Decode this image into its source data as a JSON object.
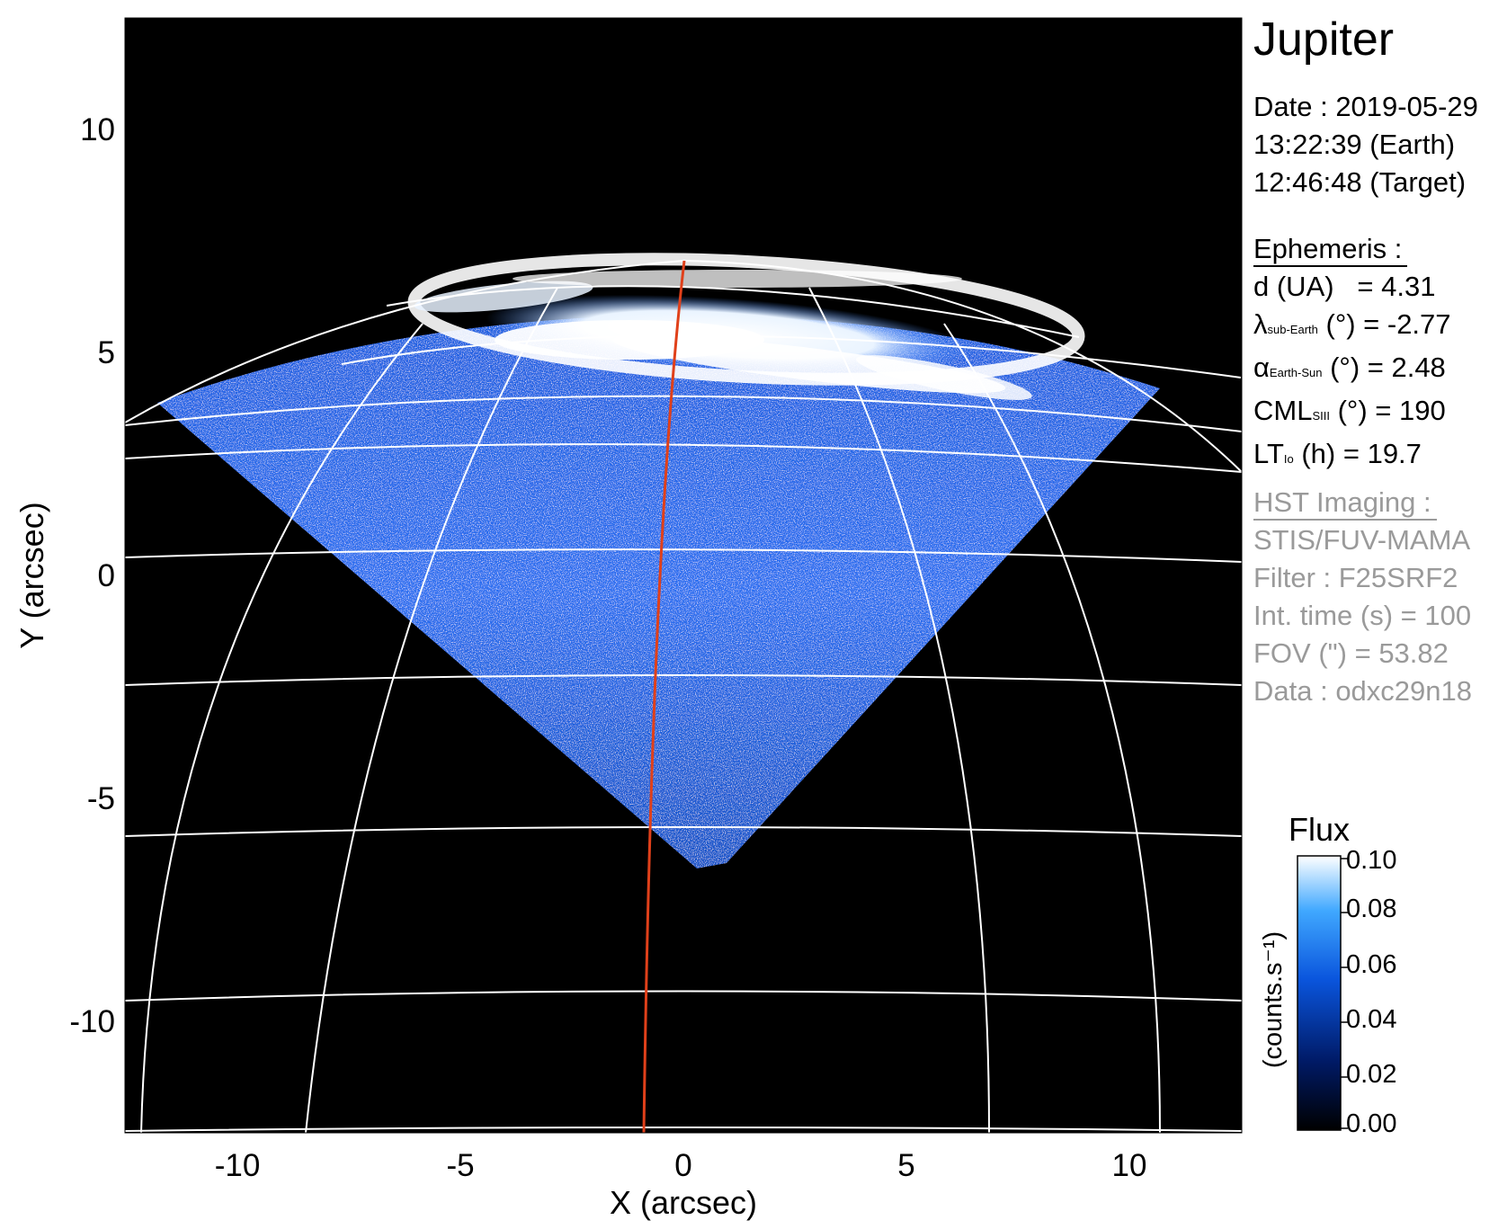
{
  "title": "Jupiter",
  "date": {
    "line1": "Date : 2019-05-29",
    "line2": "13:22:39 (Earth)",
    "line3": "12:46:48 (Target)"
  },
  "ephemeris": {
    "header": "Ephemeris :",
    "d_label": "d (UA)",
    "d_value": "= 4.31",
    "lambda_symbol": "λ",
    "lambda_sub": "sub-Earth",
    "lambda_rest": "(°) = -2.77",
    "alpha_symbol": "α",
    "alpha_sub": "Earth-Sun",
    "alpha_rest": "(°) = 2.48",
    "cml_main": "CML",
    "cml_sub": "SIII",
    "cml_rest": "(°) = 190",
    "lt_main": "LT",
    "lt_sub": "Io",
    "lt_rest": "(h) = 19.7"
  },
  "imaging": {
    "header": "HST Imaging :",
    "instrument": "STIS/FUV-MAMA",
    "filter": "Filter : F25SRF2",
    "int_time": "Int. time (s) = 100",
    "fov": "FOV (\") = 53.82",
    "data": "Data : odxc29n18"
  },
  "colorbar": {
    "title": "Flux",
    "unit": "(counts.s⁻¹)",
    "ticks": [
      "0.10",
      "0.08",
      "0.06",
      "0.04",
      "0.02",
      "0.00"
    ],
    "range": [
      0,
      0.1
    ]
  },
  "axes": {
    "xlabel": "X (arcsec)",
    "ylabel": "Y (arcsec)",
    "xlim": [
      -12.5,
      12.5
    ],
    "ylim": [
      -12.5,
      12.5
    ],
    "xticks": [
      "-10",
      "-5",
      "0",
      "5",
      "10"
    ],
    "yticks": [
      "10",
      "5",
      "0",
      "-5",
      "-10"
    ]
  },
  "colors": {
    "background": "#000000",
    "aurora": "#ffffff",
    "emission": "#1a66ff",
    "grid": "#ffffff",
    "meridian": "#e0401a"
  }
}
